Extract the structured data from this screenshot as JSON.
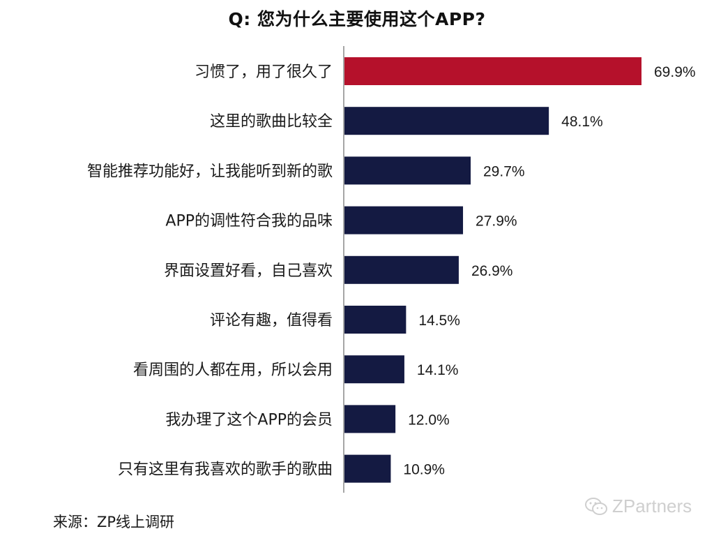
{
  "chart_data": {
    "type": "bar",
    "orientation": "horizontal",
    "title": "Q: 您为什么主要使用这个APP?",
    "categories": [
      "习惯了，用了很久了",
      "这里的歌曲比较全",
      "智能推荐功能好，让我能听到新的歌",
      "APP的调性符合我的品味",
      "界面设置好看，自己喜欢",
      "评论有趣，值得看",
      "看周围的人都在用，所以会用",
      "我办理了这个APP的会员",
      "只有这里有我喜欢的歌手的歌曲"
    ],
    "values": [
      69.9,
      48.1,
      29.7,
      27.9,
      26.9,
      14.5,
      14.1,
      12.0,
      10.9
    ],
    "value_labels": [
      "69.9%",
      "48.1%",
      "29.7%",
      "27.9%",
      "26.9%",
      "14.5%",
      "14.1%",
      "12.0%",
      "10.9%"
    ],
    "highlight_index": 0,
    "colors": {
      "highlight": "#b5112b",
      "bar": "#141a42",
      "axis": "#888888"
    },
    "xlim": [
      0,
      70
    ],
    "grid": false,
    "legend": "none"
  },
  "footer": {
    "source": "来源：ZP线上调研",
    "watermark": "ZPartners",
    "watermark_icon": "wechat-icon"
  }
}
